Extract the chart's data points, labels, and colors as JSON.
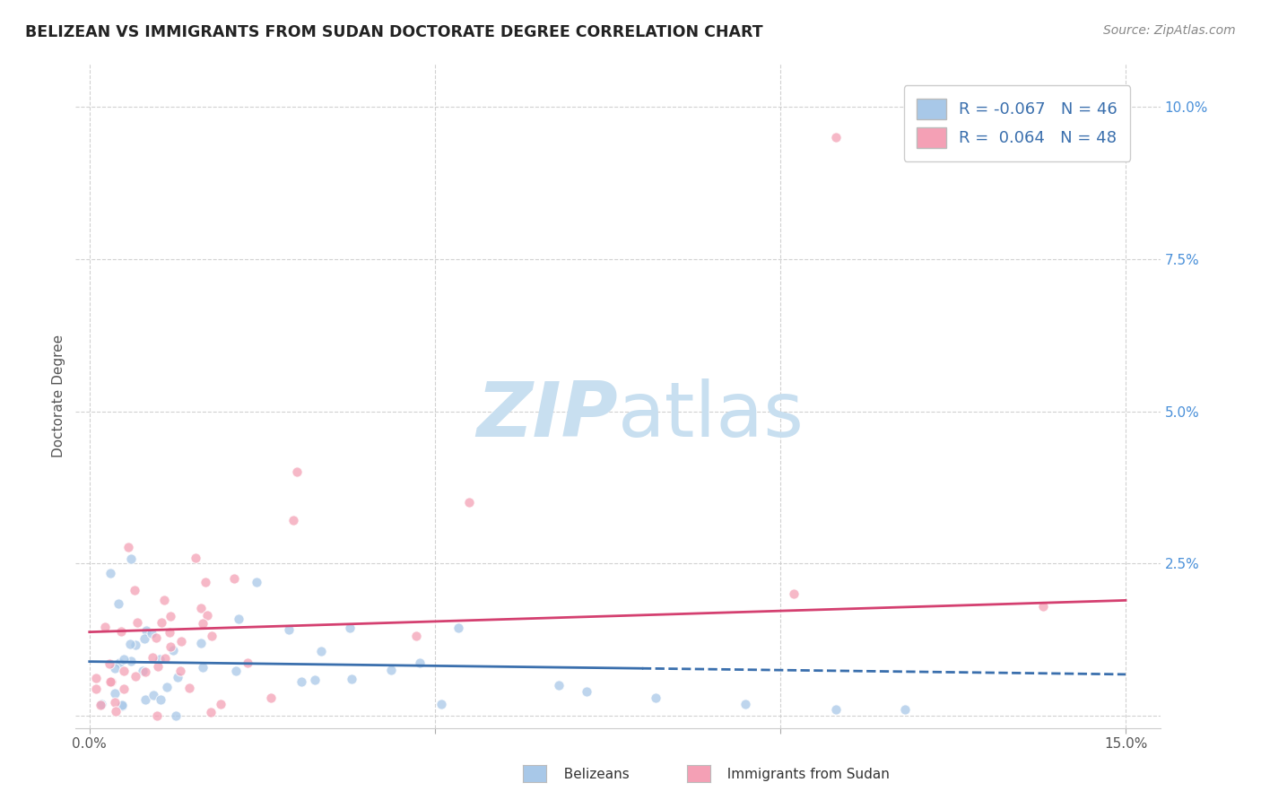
{
  "title": "BELIZEAN VS IMMIGRANTS FROM SUDAN DOCTORATE DEGREE CORRELATION CHART",
  "source": "Source: ZipAtlas.com",
  "xlabel_belizean": "Belizeans",
  "xlabel_sudan": "Immigrants from Sudan",
  "ylabel": "Doctorate Degree",
  "xlim": [
    -0.002,
    0.155
  ],
  "ylim": [
    -0.002,
    0.107
  ],
  "R_blue": -0.067,
  "N_blue": 46,
  "R_pink": 0.064,
  "N_pink": 48,
  "color_blue": "#a8c8e8",
  "color_pink": "#f4a0b5",
  "line_color_blue": "#3a6fad",
  "line_color_pink": "#d44070",
  "text_color_blue": "#3a6fad",
  "background_color": "#ffffff",
  "grid_color": "#cccccc",
  "ytick_color": "#4a90d9",
  "watermark_color": "#c8dff0"
}
